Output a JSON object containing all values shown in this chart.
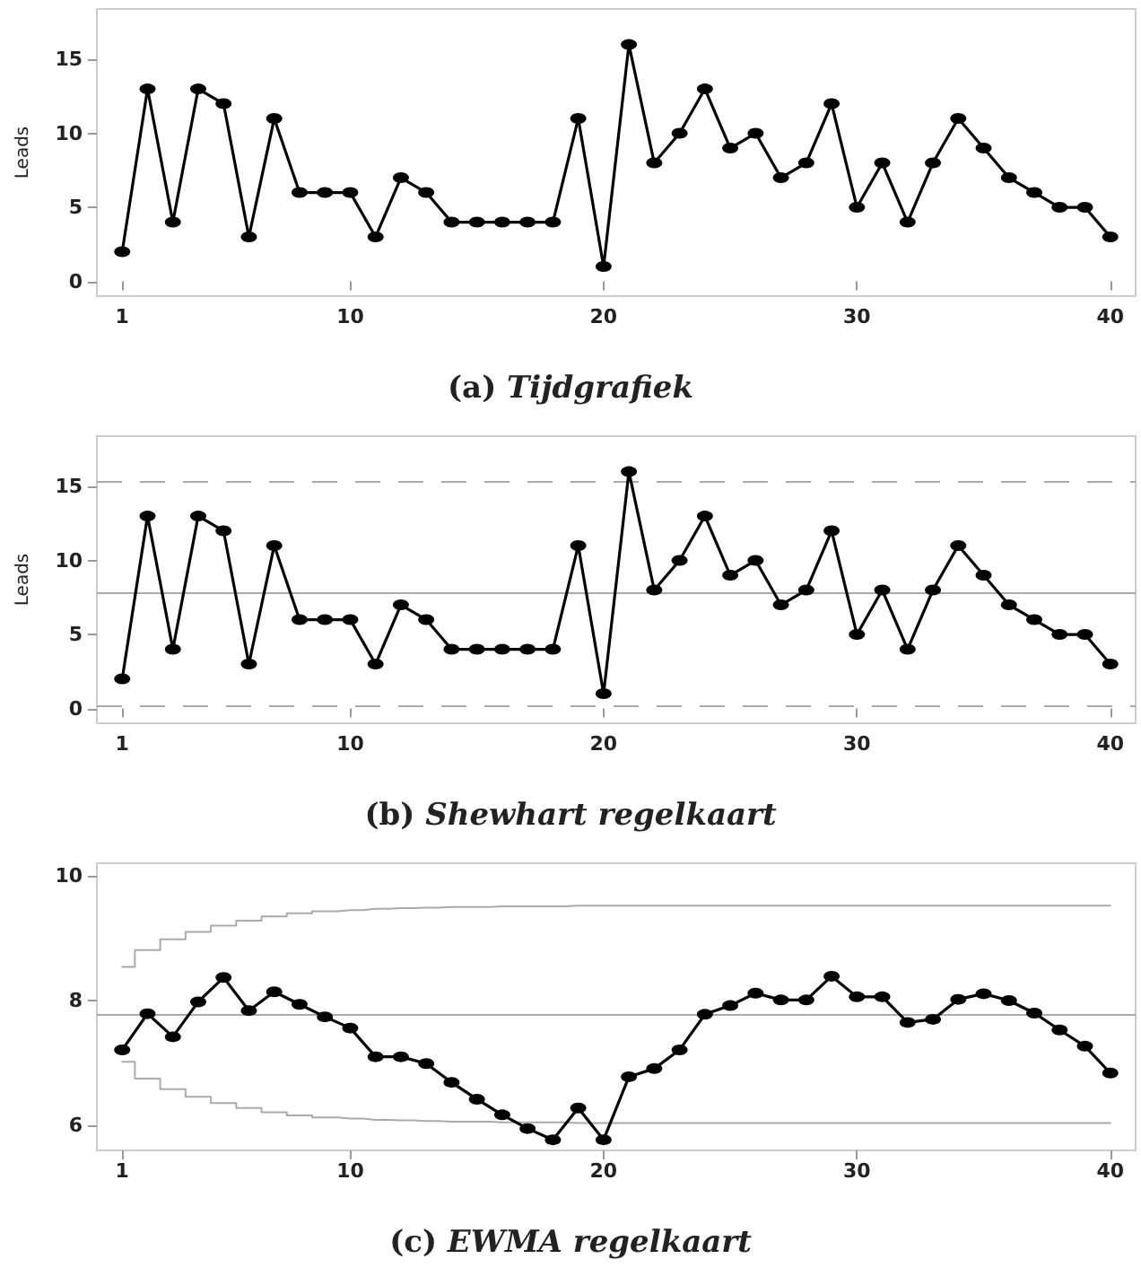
{
  "chart_data": [
    {
      "type": "line",
      "title": "(a) Tijdgrafiek",
      "ylabel": "Leads",
      "marker": "circle",
      "line_style": "solid",
      "grid": false,
      "x": [
        1,
        2,
        3,
        4,
        5,
        6,
        7,
        8,
        9,
        10,
        11,
        12,
        13,
        14,
        15,
        16,
        17,
        18,
        19,
        20,
        21,
        22,
        23,
        24,
        25,
        26,
        27,
        28,
        29,
        30,
        31,
        32,
        33,
        34,
        35,
        36,
        37,
        38,
        39,
        40
      ],
      "xlim": [
        0,
        41
      ],
      "xticks": [
        1,
        10,
        20,
        30,
        40
      ],
      "ylim": [
        -1,
        18.4
      ],
      "yticks": [
        0,
        5,
        10,
        15
      ],
      "series": [
        {
          "color": "#000000",
          "values": [
            2,
            13,
            4,
            13,
            12,
            3,
            11,
            6,
            6,
            6,
            3,
            7,
            6,
            4,
            4,
            4,
            4,
            4,
            11,
            1,
            16,
            8,
            10,
            13,
            9,
            10,
            7,
            8,
            12,
            5,
            8,
            4,
            8,
            11,
            9,
            7,
            6,
            5,
            5,
            3
          ]
        }
      ]
    },
    {
      "type": "line",
      "title": "(b) Shewhart regelkaart",
      "ylabel": "Leads",
      "marker": "circle",
      "line_style": "solid",
      "grid": false,
      "x": [
        1,
        2,
        3,
        4,
        5,
        6,
        7,
        8,
        9,
        10,
        11,
        12,
        13,
        14,
        15,
        16,
        17,
        18,
        19,
        20,
        21,
        22,
        23,
        24,
        25,
        26,
        27,
        28,
        29,
        30,
        31,
        32,
        33,
        34,
        35,
        36,
        37,
        38,
        39,
        40
      ],
      "xlim": [
        0,
        41
      ],
      "xticks": [
        1,
        10,
        20,
        30,
        40
      ],
      "ylim": [
        -1,
        18.4
      ],
      "yticks": [
        0,
        5,
        10,
        15
      ],
      "ref_lines": [
        {
          "axis": "y",
          "value": 15.3,
          "color": "#aaaaaa",
          "line_style": "dashed"
        },
        {
          "axis": "y",
          "value": 7.8,
          "color": "#aaaaaa",
          "line_style": "solid"
        },
        {
          "axis": "y",
          "value": 0.2,
          "color": "#aaaaaa",
          "line_style": "dashed"
        }
      ],
      "series": [
        {
          "color": "#000000",
          "values": [
            2,
            13,
            4,
            13,
            12,
            3,
            11,
            6,
            6,
            6,
            3,
            7,
            6,
            4,
            4,
            4,
            4,
            4,
            11,
            1,
            16,
            8,
            10,
            13,
            9,
            10,
            7,
            8,
            12,
            5,
            8,
            4,
            8,
            11,
            9,
            7,
            6,
            5,
            5,
            3
          ]
        }
      ]
    },
    {
      "type": "line",
      "title": "(c) EWMA regelkaart",
      "marker": "circle",
      "line_style": "solid",
      "grid": false,
      "x": [
        1,
        2,
        3,
        4,
        5,
        6,
        7,
        8,
        9,
        10,
        11,
        12,
        13,
        14,
        15,
        16,
        17,
        18,
        19,
        20,
        21,
        22,
        23,
        24,
        25,
        26,
        27,
        28,
        29,
        30,
        31,
        32,
        33,
        34,
        35,
        36,
        37,
        38,
        39,
        40
      ],
      "xlim": [
        0,
        41
      ],
      "xticks": [
        1,
        10,
        20,
        30,
        40
      ],
      "ylim": [
        5.6,
        10.2
      ],
      "yticks": [
        6,
        8,
        10
      ],
      "ref_lines": [
        {
          "axis": "y",
          "value": 7.78,
          "color": "#aaaaaa",
          "line_style": "solid"
        }
      ],
      "series": [
        {
          "type": "step",
          "marker": "none",
          "color": "#aaaaaa",
          "values": [
            8.54,
            8.81,
            8.98,
            9.1,
            9.2,
            9.28,
            9.35,
            9.4,
            9.43,
            9.45,
            9.47,
            9.48,
            9.49,
            9.5,
            9.5,
            9.51,
            9.51,
            9.51,
            9.52,
            9.52,
            9.52,
            9.52,
            9.52,
            9.52,
            9.52,
            9.52,
            9.52,
            9.52,
            9.52,
            9.52,
            9.52,
            9.52,
            9.52,
            9.52,
            9.52,
            9.52,
            9.52,
            9.52,
            9.52,
            9.52
          ]
        },
        {
          "type": "step",
          "marker": "none",
          "color": "#aaaaaa",
          "values": [
            7.02,
            6.75,
            6.58,
            6.46,
            6.36,
            6.28,
            6.21,
            6.16,
            6.13,
            6.11,
            6.09,
            6.08,
            6.07,
            6.06,
            6.06,
            6.05,
            6.05,
            6.05,
            6.04,
            6.04,
            6.04,
            6.04,
            6.04,
            6.04,
            6.04,
            6.04,
            6.04,
            6.04,
            6.04,
            6.04,
            6.04,
            6.04,
            6.04,
            6.04,
            6.04,
            6.04,
            6.04,
            6.04,
            6.04,
            6.04
          ]
        },
        {
          "color": "#000000",
          "values": [
            7.21,
            7.79,
            7.42,
            7.98,
            8.37,
            7.84,
            8.14,
            7.94,
            7.74,
            7.56,
            7.1,
            7.1,
            6.99,
            6.69,
            6.42,
            6.17,
            5.95,
            5.77,
            6.28,
            5.77,
            6.78,
            6.91,
            7.21,
            7.78,
            7.92,
            8.12,
            8.01,
            8.01,
            8.39,
            8.06,
            8.06,
            7.65,
            7.7,
            8.02,
            8.11,
            8,
            7.8,
            7.53,
            7.27,
            6.84
          ]
        }
      ]
    }
  ]
}
